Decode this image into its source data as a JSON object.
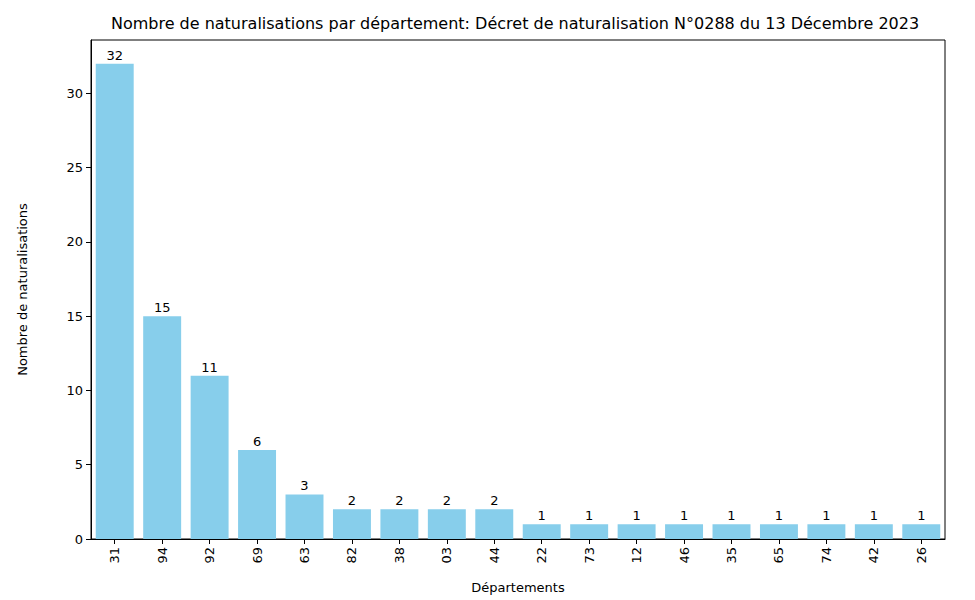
{
  "chart_data": {
    "type": "bar",
    "title": "Nombre de naturalisations par département: Décret de naturalisation N°0288 du 13 Décembre 2023",
    "x_label": "Départements",
    "y_label": "Nombre de naturalisations",
    "categories": [
      "31",
      "94",
      "92",
      "69",
      "63",
      "82",
      "38",
      "03",
      "44",
      "22",
      "73",
      "12",
      "46",
      "35",
      "65",
      "74",
      "42",
      "26"
    ],
    "values": [
      32,
      15,
      11,
      6,
      3,
      2,
      2,
      2,
      2,
      1,
      1,
      1,
      1,
      1,
      1,
      1,
      1,
      1
    ],
    "color": "#87ceeb",
    "ylim": [
      0,
      33.6
    ],
    "yticks": [
      0,
      5,
      10,
      15,
      20,
      25,
      30
    ],
    "grid": false,
    "data_labels": true
  }
}
